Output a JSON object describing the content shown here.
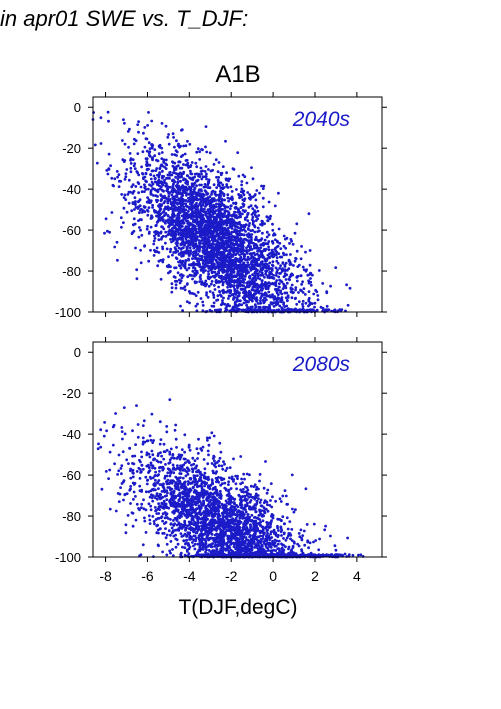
{
  "figure": {
    "header_text": "in apr01 SWE vs. T_DJF:",
    "scenario_title": "A1B",
    "xlabel": "T(DJF,degC)"
  },
  "colors": {
    "points": "#1b1bc8",
    "panel_label": "#1b1bc8",
    "axes": "#000000"
  },
  "chart_data": [
    {
      "type": "scatter",
      "panel_label": "2040s",
      "xlim": [
        -8.6,
        5.2
      ],
      "ylim": [
        -100,
        5
      ],
      "x_ticks": [
        -8,
        -6,
        -4,
        -2,
        0,
        2,
        4
      ],
      "y_ticks": [
        0,
        -20,
        -40,
        -60,
        -80,
        -100
      ],
      "x_tick_labels_shown": false,
      "trend": {
        "x_mean": -2.6,
        "x_sd": 2.0,
        "slope": -7.2,
        "intercept": -66.0,
        "resid_sd": 16.0
      },
      "n_points": 3800,
      "clustered_at_ymin": true
    },
    {
      "type": "scatter",
      "panel_label": "2080s",
      "xlim": [
        -8.6,
        5.2
      ],
      "ylim": [
        -100,
        5
      ],
      "x_ticks": [
        -8,
        -6,
        -4,
        -2,
        0,
        2,
        4
      ],
      "y_ticks": [
        0,
        -20,
        -40,
        -60,
        -80,
        -100
      ],
      "x_tick_labels_shown": true,
      "trend": {
        "x_mean": -2.3,
        "x_sd": 2.1,
        "slope": -6.0,
        "intercept": -86.0,
        "resid_sd": 14.0
      },
      "n_points": 3200,
      "clustered_at_ymin": true
    }
  ]
}
